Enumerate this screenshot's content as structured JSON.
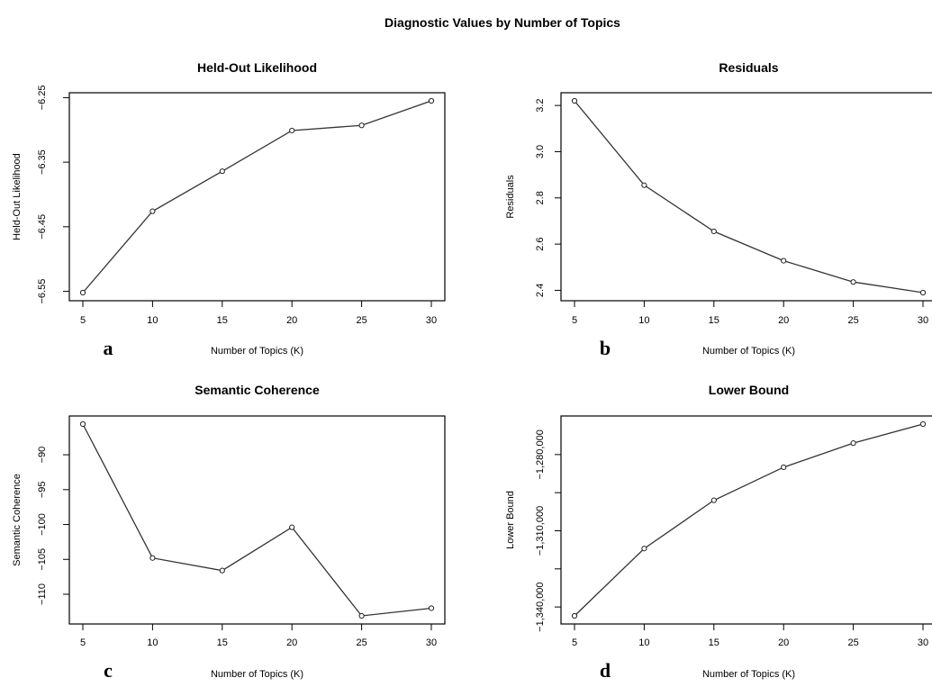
{
  "main_title": "Diagnostic Values by Number of Topics",
  "chart_data": [
    {
      "type": "line",
      "letter": "a",
      "title": "Held-Out Likelihood",
      "xlabel": "Number of Topics (K)",
      "ylabel": "Held-Out Likelihood",
      "x": [
        5,
        10,
        15,
        20,
        25,
        30
      ],
      "y": [
        -6.552,
        -6.426,
        -6.364,
        -6.301,
        -6.293,
        -6.255
      ],
      "xticks": [
        5,
        10,
        15,
        20,
        25,
        30
      ],
      "xtick_labels": [
        "5",
        "10",
        "15",
        "20",
        "25",
        "30"
      ],
      "yticks": [
        -6.25,
        -6.35,
        -6.45,
        -6.55
      ],
      "ytick_labels": [
        "-6.25",
        "-6.35",
        "-6.45",
        "-6.55"
      ],
      "xlim": [
        5,
        30
      ],
      "ylim": [
        -6.552,
        -6.255
      ]
    },
    {
      "type": "line",
      "letter": "b",
      "title": "Residuals",
      "xlabel": "Number of Topics (K)",
      "ylabel": "Residuals",
      "x": [
        5,
        10,
        15,
        20,
        25,
        30
      ],
      "y": [
        3.22,
        2.855,
        2.655,
        2.528,
        2.436,
        2.39
      ],
      "xticks": [
        5,
        10,
        15,
        20,
        25,
        30
      ],
      "xtick_labels": [
        "5",
        "10",
        "15",
        "20",
        "25",
        "30"
      ],
      "yticks": [
        2.4,
        2.6,
        2.8,
        3.0,
        3.2
      ],
      "ytick_labels": [
        "2.4",
        "2.6",
        "2.8",
        "3.0",
        "3.2"
      ],
      "xlim": [
        5,
        30
      ],
      "ylim": [
        2.39,
        3.22
      ]
    },
    {
      "type": "line",
      "letter": "c",
      "title": "Semantic Coherence",
      "xlabel": "Number of Topics (K)",
      "ylabel": "Semantic Coherence",
      "x": [
        5,
        10,
        15,
        20,
        25,
        30
      ],
      "y": [
        -85.6,
        -104.8,
        -106.6,
        -100.4,
        -113.1,
        -112.0
      ],
      "xticks": [
        5,
        10,
        15,
        20,
        25,
        30
      ],
      "xtick_labels": [
        "5",
        "10",
        "15",
        "20",
        "25",
        "30"
      ],
      "yticks": [
        -90,
        -95,
        -100,
        -105,
        -110
      ],
      "ytick_labels": [
        "-90",
        "-95",
        "-100",
        "-105",
        "-110"
      ],
      "xlim": [
        5,
        30
      ],
      "ylim": [
        -113.1,
        -85.6
      ]
    },
    {
      "type": "line",
      "letter": "d",
      "title": "Lower Bound",
      "xlabel": "Number of Topics (K)",
      "ylabel": "Lower Bound",
      "x": [
        5,
        10,
        15,
        20,
        25,
        30
      ],
      "y": [
        -1343500,
        -1317000,
        -1298000,
        -1285000,
        -1275500,
        -1268000
      ],
      "xticks": [
        5,
        10,
        15,
        20,
        25,
        30
      ],
      "xtick_labels": [
        "5",
        "10",
        "15",
        "20",
        "25",
        "30"
      ],
      "yticks": [
        -1280000,
        -1310000,
        -1340000
      ],
      "ytick_labels": [
        "-1,280,000",
        "-1,310,000",
        "-1,340,000"
      ],
      "minor_yticks": [
        -1295000,
        -1325000
      ],
      "xlim": [
        5,
        30
      ],
      "ylim": [
        -1343500,
        -1268000
      ]
    }
  ]
}
